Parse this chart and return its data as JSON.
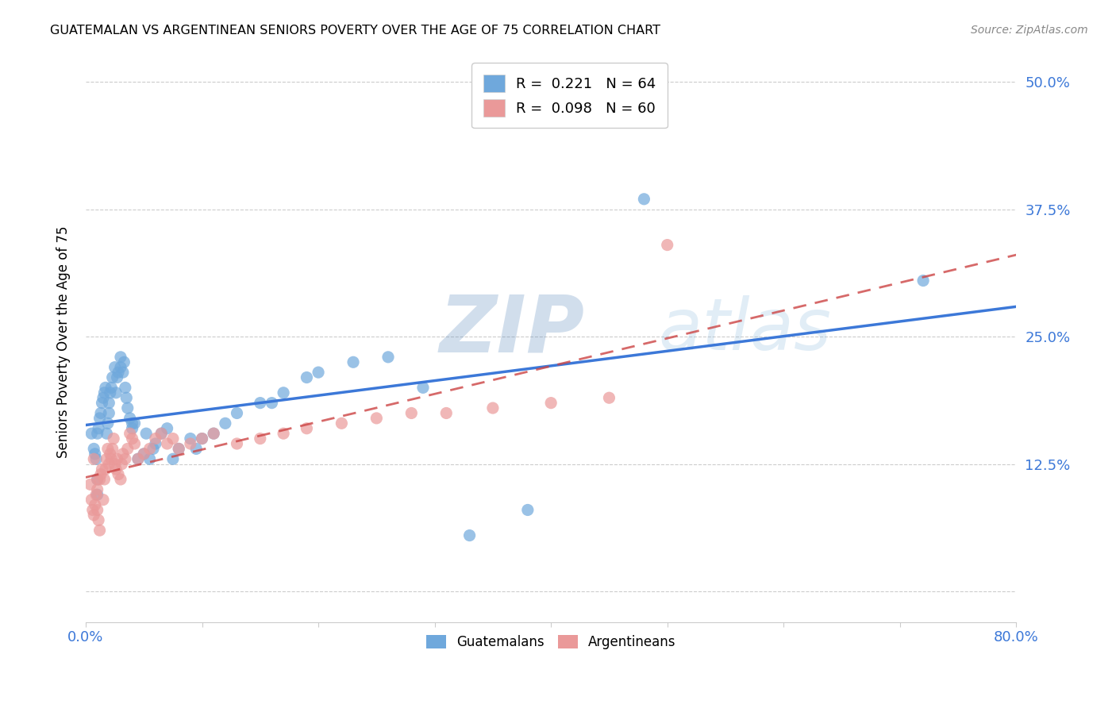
{
  "title": "GUATEMALAN VS ARGENTINEAN SENIORS POVERTY OVER THE AGE OF 75 CORRELATION CHART",
  "source": "Source: ZipAtlas.com",
  "ylabel": "Seniors Poverty Over the Age of 75",
  "xlabel": "",
  "xlim": [
    0.0,
    0.8
  ],
  "ylim": [
    -0.03,
    0.52
  ],
  "xticks": [
    0.0,
    0.1,
    0.2,
    0.3,
    0.4,
    0.5,
    0.6,
    0.7,
    0.8
  ],
  "ytick_positions": [
    0.0,
    0.125,
    0.25,
    0.375,
    0.5
  ],
  "yticklabels": [
    "",
    "12.5%",
    "25.0%",
    "37.5%",
    "50.0%"
  ],
  "guatemalan_R": 0.221,
  "guatemalan_N": 64,
  "argentinean_R": 0.098,
  "argentinean_N": 60,
  "watermark_zip": "ZIP",
  "watermark_atlas": "atlas",
  "blue_color": "#6fa8dc",
  "pink_color": "#ea9999",
  "blue_line_color": "#3c78d8",
  "pink_line_color": "#cc4444",
  "guatemalan_x": [
    0.005,
    0.007,
    0.008,
    0.009,
    0.01,
    0.01,
    0.01,
    0.011,
    0.012,
    0.013,
    0.014,
    0.015,
    0.016,
    0.017,
    0.018,
    0.019,
    0.02,
    0.02,
    0.021,
    0.022,
    0.023,
    0.025,
    0.026,
    0.027,
    0.028,
    0.03,
    0.03,
    0.032,
    0.033,
    0.034,
    0.035,
    0.036,
    0.038,
    0.04,
    0.04,
    0.042,
    0.045,
    0.05,
    0.052,
    0.055,
    0.058,
    0.06,
    0.065,
    0.07,
    0.075,
    0.08,
    0.09,
    0.095,
    0.1,
    0.11,
    0.12,
    0.13,
    0.15,
    0.16,
    0.17,
    0.19,
    0.2,
    0.23,
    0.26,
    0.29,
    0.33,
    0.38,
    0.48,
    0.72
  ],
  "guatemalan_y": [
    0.155,
    0.14,
    0.135,
    0.13,
    0.095,
    0.11,
    0.155,
    0.16,
    0.17,
    0.175,
    0.185,
    0.19,
    0.195,
    0.2,
    0.155,
    0.165,
    0.175,
    0.185,
    0.195,
    0.2,
    0.21,
    0.22,
    0.195,
    0.21,
    0.215,
    0.22,
    0.23,
    0.215,
    0.225,
    0.2,
    0.19,
    0.18,
    0.17,
    0.16,
    0.165,
    0.165,
    0.13,
    0.135,
    0.155,
    0.13,
    0.14,
    0.145,
    0.155,
    0.16,
    0.13,
    0.14,
    0.15,
    0.14,
    0.15,
    0.155,
    0.165,
    0.175,
    0.185,
    0.185,
    0.195,
    0.21,
    0.215,
    0.225,
    0.23,
    0.2,
    0.055,
    0.08,
    0.385,
    0.305
  ],
  "argentinean_x": [
    0.004,
    0.005,
    0.006,
    0.007,
    0.007,
    0.008,
    0.009,
    0.01,
    0.01,
    0.01,
    0.011,
    0.012,
    0.012,
    0.013,
    0.014,
    0.015,
    0.016,
    0.017,
    0.018,
    0.019,
    0.02,
    0.021,
    0.022,
    0.023,
    0.024,
    0.025,
    0.026,
    0.027,
    0.028,
    0.03,
    0.031,
    0.032,
    0.034,
    0.036,
    0.038,
    0.04,
    0.042,
    0.045,
    0.05,
    0.055,
    0.06,
    0.065,
    0.07,
    0.075,
    0.08,
    0.09,
    0.1,
    0.11,
    0.13,
    0.15,
    0.17,
    0.19,
    0.22,
    0.25,
    0.28,
    0.31,
    0.35,
    0.4,
    0.45,
    0.5
  ],
  "argentinean_y": [
    0.105,
    0.09,
    0.08,
    0.075,
    0.13,
    0.085,
    0.095,
    0.08,
    0.1,
    0.11,
    0.07,
    0.06,
    0.11,
    0.115,
    0.12,
    0.09,
    0.11,
    0.12,
    0.13,
    0.14,
    0.125,
    0.135,
    0.13,
    0.14,
    0.15,
    0.125,
    0.12,
    0.13,
    0.115,
    0.11,
    0.125,
    0.135,
    0.13,
    0.14,
    0.155,
    0.15,
    0.145,
    0.13,
    0.135,
    0.14,
    0.15,
    0.155,
    0.145,
    0.15,
    0.14,
    0.145,
    0.15,
    0.155,
    0.145,
    0.15,
    0.155,
    0.16,
    0.165,
    0.17,
    0.175,
    0.175,
    0.18,
    0.185,
    0.19,
    0.34
  ]
}
